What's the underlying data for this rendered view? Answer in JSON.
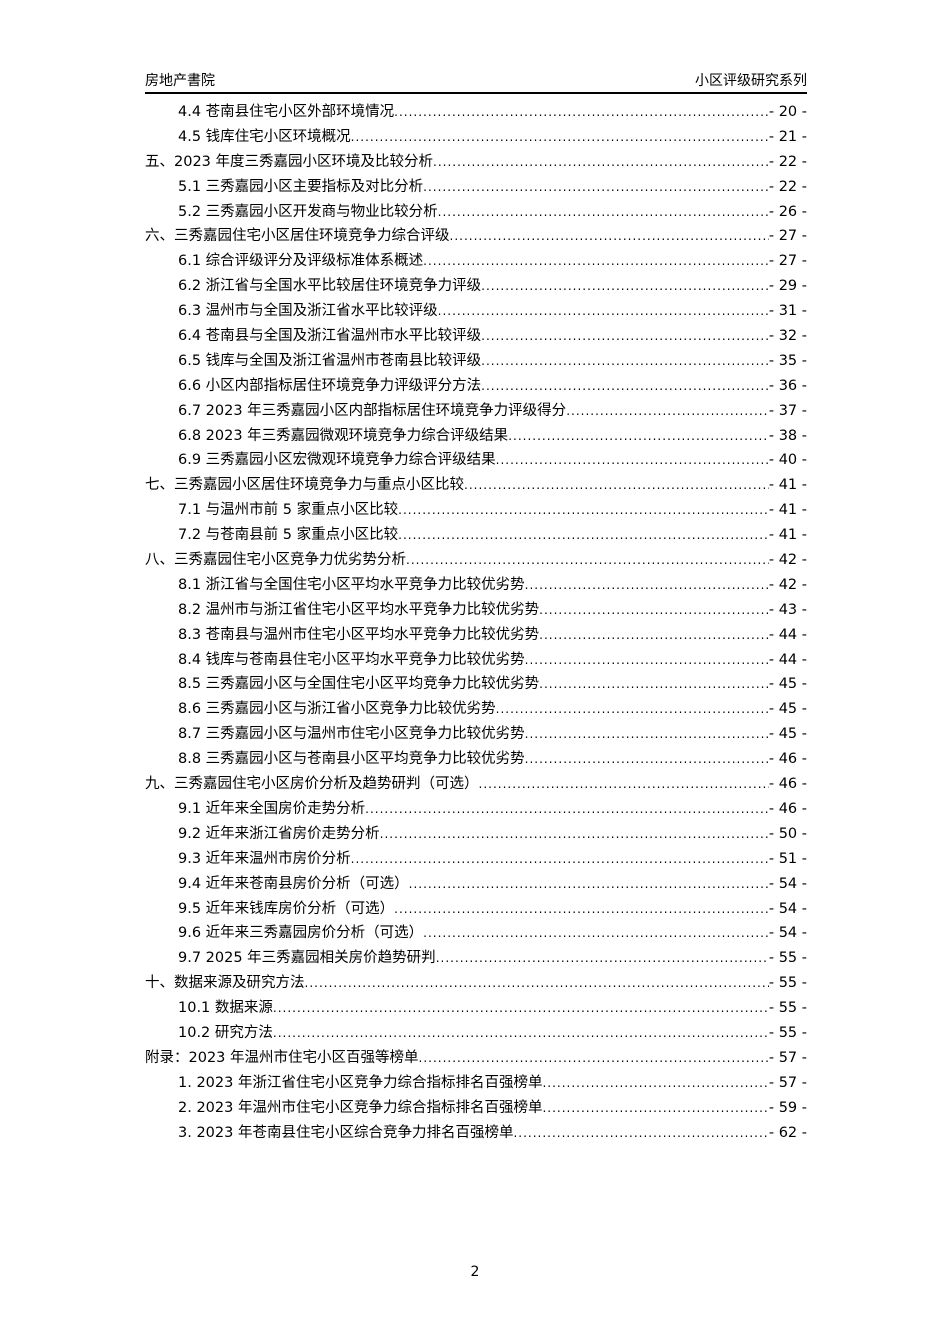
{
  "header": {
    "left": "房地产書院",
    "right": "小区评级研究系列"
  },
  "toc": [
    {
      "level": 2,
      "title": "4.4 苍南县住宅小区外部环境情况",
      "page": "- 20 -"
    },
    {
      "level": 2,
      "title": "4.5 钱库住宅小区环境概况",
      "page": "- 21 -"
    },
    {
      "level": 1,
      "title": "五、2023 年度三秀嘉园小区环境及比较分析",
      "page": "- 22 -"
    },
    {
      "level": 2,
      "title": "5.1 三秀嘉园小区主要指标及对比分析",
      "page": "- 22 -"
    },
    {
      "level": 2,
      "title": "5.2 三秀嘉园小区开发商与物业比较分析",
      "page": "- 26 -"
    },
    {
      "level": 1,
      "title": "六、三秀嘉园住宅小区居住环境竞争力综合评级",
      "page": "- 27 -"
    },
    {
      "level": 2,
      "title": "6.1 综合评级评分及评级标准体系概述",
      "page": "- 27 -"
    },
    {
      "level": 2,
      "title": "6.2 浙江省与全国水平比较居住环境竞争力评级",
      "page": "- 29 -"
    },
    {
      "level": 2,
      "title": "6.3 温州市与全国及浙江省水平比较评级",
      "page": "- 31 -"
    },
    {
      "level": 2,
      "title": "6.4 苍南县与全国及浙江省温州市水平比较评级",
      "page": "- 32 -"
    },
    {
      "level": 2,
      "title": "6.5 钱库与全国及浙江省温州市苍南县比较评级",
      "page": "- 35 -"
    },
    {
      "level": 2,
      "title": "6.6 小区内部指标居住环境竞争力评级评分方法",
      "page": "- 36 -"
    },
    {
      "level": 2,
      "title": "6.7 2023 年三秀嘉园小区内部指标居住环境竞争力评级得分",
      "page": "- 37 -"
    },
    {
      "level": 2,
      "title": "6.8 2023 年三秀嘉园微观环境竞争力综合评级结果",
      "page": "- 38 -"
    },
    {
      "level": 2,
      "title": "6.9 三秀嘉园小区宏微观环境竞争力综合评级结果",
      "page": "- 40 -"
    },
    {
      "level": 1,
      "title": "七、三秀嘉园小区居住环境竞争力与重点小区比较",
      "page": "- 41 -"
    },
    {
      "level": 2,
      "title": "7.1 与温州市前 5 家重点小区比较",
      "page": "- 41 -"
    },
    {
      "level": 2,
      "title": "7.2 与苍南县前 5 家重点小区比较",
      "page": "- 41 -"
    },
    {
      "level": 1,
      "title": "八、三秀嘉园住宅小区竞争力优劣势分析",
      "page": "- 42 -"
    },
    {
      "level": 2,
      "title": "8.1 浙江省与全国住宅小区平均水平竞争力比较优劣势",
      "page": "- 42 -"
    },
    {
      "level": 2,
      "title": "8.2 温州市与浙江省住宅小区平均水平竞争力比较优劣势",
      "page": "- 43 -"
    },
    {
      "level": 2,
      "title": "8.3 苍南县与温州市住宅小区平均水平竞争力比较优劣势",
      "page": "- 44 -"
    },
    {
      "level": 2,
      "title": "8.4 钱库与苍南县住宅小区平均水平竞争力比较优劣势",
      "page": "- 44 -"
    },
    {
      "level": 2,
      "title": "8.5 三秀嘉园小区与全国住宅小区平均竞争力比较优劣势",
      "page": "- 45 -"
    },
    {
      "level": 2,
      "title": "8.6 三秀嘉园小区与浙江省小区竞争力比较优劣势",
      "page": "- 45 -"
    },
    {
      "level": 2,
      "title": "8.7 三秀嘉园小区与温州市住宅小区竞争力比较优劣势",
      "page": "- 45 -"
    },
    {
      "level": 2,
      "title": "8.8 三秀嘉园小区与苍南县小区平均竞争力比较优劣势",
      "page": "- 46 -"
    },
    {
      "level": 1,
      "title": "九、三秀嘉园住宅小区房价分析及趋势研判（可选）",
      "page": "- 46 -"
    },
    {
      "level": 2,
      "title": "9.1 近年来全国房价走势分析",
      "page": "- 46 -"
    },
    {
      "level": 2,
      "title": "9.2 近年来浙江省房价走势分析",
      "page": "- 50 -"
    },
    {
      "level": 2,
      "title": "9.3 近年来温州市房价分析",
      "page": "- 51 -"
    },
    {
      "level": 2,
      "title": "9.4 近年来苍南县房价分析（可选）",
      "page": "- 54 -"
    },
    {
      "level": 2,
      "title": "9.5 近年来钱库房价分析（可选）",
      "page": "- 54 -"
    },
    {
      "level": 2,
      "title": "9.6 近年来三秀嘉园房价分析（可选）",
      "page": "- 54 -"
    },
    {
      "level": 2,
      "title": "9.7 2025 年三秀嘉园相关房价趋势研判",
      "page": "- 55 -"
    },
    {
      "level": 1,
      "title": "十、数据来源及研究方法",
      "page": "- 55 -"
    },
    {
      "level": 2,
      "title": "10.1 数据来源",
      "page": "- 55 -"
    },
    {
      "level": 2,
      "title": "10.2 研究方法",
      "page": "- 55 -"
    },
    {
      "level": 1,
      "title": "附录：2023 年温州市住宅小区百强等榜单",
      "page": "- 57 -"
    },
    {
      "level": 2,
      "title": "1. 2023 年浙江省住宅小区竞争力综合指标排名百强榜单",
      "page": "- 57 -"
    },
    {
      "level": 2,
      "title": "2. 2023 年温州市住宅小区竞争力综合指标排名百强榜单",
      "page": "- 59 -"
    },
    {
      "level": 2,
      "title": "3. 2023 年苍南县住宅小区综合竞争力排名百强榜单",
      "page": "- 62 -"
    }
  ],
  "footer": {
    "page_number": "2"
  }
}
